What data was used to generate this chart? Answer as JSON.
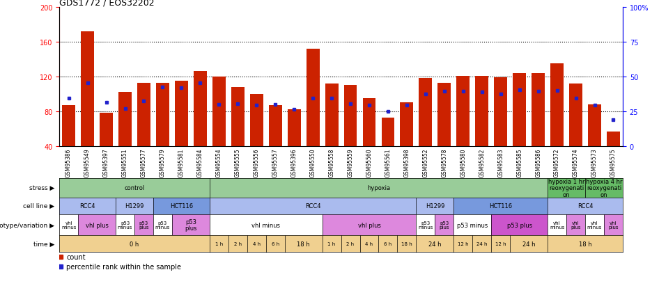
{
  "title": "GDS1772 / EOS32202",
  "samples": [
    "GSM95386",
    "GSM95549",
    "GSM95397",
    "GSM95551",
    "GSM95577",
    "GSM95579",
    "GSM95581",
    "GSM95584",
    "GSM95554",
    "GSM95555",
    "GSM95556",
    "GSM95557",
    "GSM95396",
    "GSM95550",
    "GSM95558",
    "GSM95559",
    "GSM95560",
    "GSM95561",
    "GSM95398",
    "GSM95552",
    "GSM95578",
    "GSM95580",
    "GSM95582",
    "GSM95583",
    "GSM95585",
    "GSM95586",
    "GSM95572",
    "GSM95574",
    "GSM95573",
    "GSM95575"
  ],
  "bar_heights": [
    87,
    172,
    78,
    102,
    113,
    113,
    115,
    126,
    120,
    108,
    100,
    87,
    82,
    152,
    112,
    110,
    95,
    73,
    90,
    118,
    113,
    121,
    121,
    119,
    124,
    124,
    135,
    112,
    88,
    57
  ],
  "blue_values": [
    95,
    113,
    90,
    83,
    92,
    108,
    107,
    113,
    88,
    89,
    87,
    88,
    82,
    95,
    95,
    89,
    87,
    80,
    87,
    100,
    103,
    103,
    102,
    100,
    105,
    103,
    104,
    95,
    87,
    70
  ],
  "ylim_left": [
    40,
    200
  ],
  "ylim_right": [
    0,
    100
  ],
  "yticks_left": [
    40,
    80,
    120,
    160,
    200
  ],
  "yticks_right": [
    0,
    25,
    50,
    75,
    100
  ],
  "bar_color": "#cc2200",
  "blue_color": "#2222cc",
  "stress_groups": [
    {
      "label": "control",
      "start": 0,
      "end": 8,
      "color": "#99cc99"
    },
    {
      "label": "hypoxia",
      "start": 8,
      "end": 26,
      "color": "#99cc99"
    },
    {
      "label": "hypoxia 1 hr\nreoxygenati\non",
      "start": 26,
      "end": 28,
      "color": "#66bb66"
    },
    {
      "label": "hypoxia 4 hr\nreoxygenati\non",
      "start": 28,
      "end": 30,
      "color": "#66bb66"
    }
  ],
  "cell_line_groups": [
    {
      "label": "RCC4",
      "start": 0,
      "end": 3,
      "color": "#aabbee"
    },
    {
      "label": "H1299",
      "start": 3,
      "end": 5,
      "color": "#aabbee"
    },
    {
      "label": "HCT116",
      "start": 5,
      "end": 8,
      "color": "#7799dd"
    },
    {
      "label": "RCC4",
      "start": 8,
      "end": 19,
      "color": "#aabbee"
    },
    {
      "label": "H1299",
      "start": 19,
      "end": 21,
      "color": "#aabbee"
    },
    {
      "label": "HCT116",
      "start": 21,
      "end": 26,
      "color": "#7799dd"
    },
    {
      "label": "RCC4",
      "start": 26,
      "end": 30,
      "color": "#aabbee"
    }
  ],
  "genotype_groups": [
    {
      "label": "vhl\nminus",
      "start": 0,
      "end": 1,
      "color": "#ffffff"
    },
    {
      "label": "vhl plus",
      "start": 1,
      "end": 3,
      "color": "#dd88dd"
    },
    {
      "label": "p53\nminus",
      "start": 3,
      "end": 4,
      "color": "#ffffff"
    },
    {
      "label": "p53\nplus",
      "start": 4,
      "end": 5,
      "color": "#dd88dd"
    },
    {
      "label": "p53\nminus",
      "start": 5,
      "end": 6,
      "color": "#ffffff"
    },
    {
      "label": "p53\nplus",
      "start": 6,
      "end": 8,
      "color": "#dd88dd"
    },
    {
      "label": "vhl minus",
      "start": 8,
      "end": 14,
      "color": "#ffffff"
    },
    {
      "label": "vhl plus",
      "start": 14,
      "end": 19,
      "color": "#dd88dd"
    },
    {
      "label": "p53\nminus",
      "start": 19,
      "end": 20,
      "color": "#ffffff"
    },
    {
      "label": "p53\nplus",
      "start": 20,
      "end": 21,
      "color": "#dd88dd"
    },
    {
      "label": "p53 minus",
      "start": 21,
      "end": 23,
      "color": "#ffffff"
    },
    {
      "label": "p53 plus",
      "start": 23,
      "end": 26,
      "color": "#cc55cc"
    },
    {
      "label": "vhl\nminus",
      "start": 26,
      "end": 27,
      "color": "#ffffff"
    },
    {
      "label": "vhl\nplus",
      "start": 27,
      "end": 28,
      "color": "#dd88dd"
    },
    {
      "label": "vhl\nminus",
      "start": 28,
      "end": 29,
      "color": "#ffffff"
    },
    {
      "label": "vhl\nplus",
      "start": 29,
      "end": 30,
      "color": "#dd88dd"
    }
  ],
  "time_groups": [
    {
      "label": "0 h",
      "start": 0,
      "end": 8,
      "color": "#f0d090"
    },
    {
      "label": "1 h",
      "start": 8,
      "end": 9,
      "color": "#f0d090"
    },
    {
      "label": "2 h",
      "start": 9,
      "end": 10,
      "color": "#f0d090"
    },
    {
      "label": "4 h",
      "start": 10,
      "end": 11,
      "color": "#f0d090"
    },
    {
      "label": "6 h",
      "start": 11,
      "end": 12,
      "color": "#f0d090"
    },
    {
      "label": "18 h",
      "start": 12,
      "end": 14,
      "color": "#f0d090"
    },
    {
      "label": "1 h",
      "start": 14,
      "end": 15,
      "color": "#f0d090"
    },
    {
      "label": "2 h",
      "start": 15,
      "end": 16,
      "color": "#f0d090"
    },
    {
      "label": "4 h",
      "start": 16,
      "end": 17,
      "color": "#f0d090"
    },
    {
      "label": "6 h",
      "start": 17,
      "end": 18,
      "color": "#f0d090"
    },
    {
      "label": "18 h",
      "start": 18,
      "end": 19,
      "color": "#f0d090"
    },
    {
      "label": "24 h",
      "start": 19,
      "end": 21,
      "color": "#f0d090"
    },
    {
      "label": "12 h",
      "start": 21,
      "end": 22,
      "color": "#f0d090"
    },
    {
      "label": "24 h",
      "start": 22,
      "end": 23,
      "color": "#f0d090"
    },
    {
      "label": "12 h",
      "start": 23,
      "end": 24,
      "color": "#f0d090"
    },
    {
      "label": "24 h",
      "start": 24,
      "end": 26,
      "color": "#f0d090"
    },
    {
      "label": "18 h",
      "start": 26,
      "end": 30,
      "color": "#f0d090"
    }
  ],
  "row_labels": [
    "stress",
    "cell line",
    "genotype/variation",
    "time"
  ],
  "legend_items": [
    {
      "color": "#cc2200",
      "label": "count"
    },
    {
      "color": "#2222cc",
      "label": "percentile rank within the sample"
    }
  ]
}
